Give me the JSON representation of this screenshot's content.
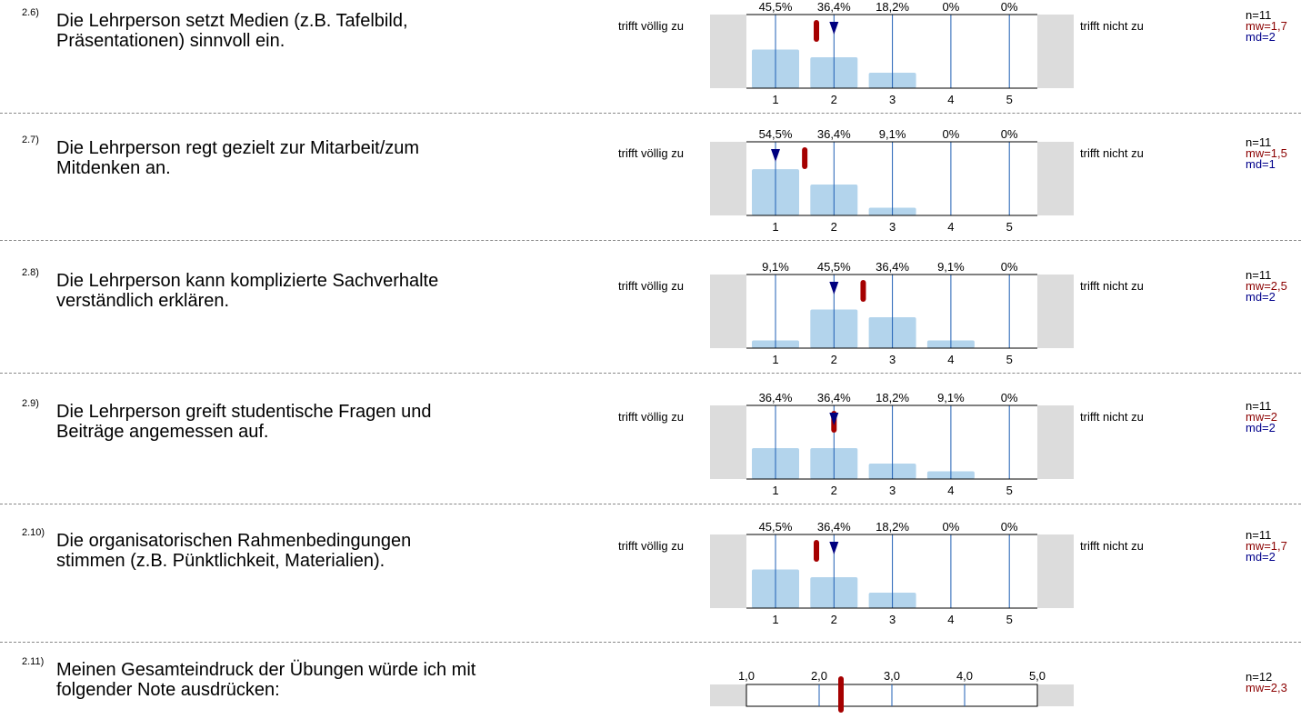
{
  "scale_left": "trifft völlig zu",
  "scale_right": "trifft nicht zu",
  "colors": {
    "bar": "#b3d4ec",
    "grid": "#1f5fb4",
    "mean": "#a50000",
    "median": "#00007f",
    "side": "#dcdcdc"
  },
  "items": [
    {
      "num": "2.6)",
      "line1": "Die Lehrperson setzt Medien (z.B. Tafelbild,",
      "line2": "Präsentationen) sinnvoll ein.",
      "pct": [
        "45,5%",
        "36,4%",
        "18,2%",
        "0%",
        "0%"
      ],
      "n": "n=11",
      "mw": "mw=1,7",
      "md": "md=2"
    },
    {
      "num": "2.7)",
      "line1": "Die Lehrperson regt gezielt zur Mitarbeit/zum",
      "line2": "Mitdenken an.",
      "pct": [
        "54,5%",
        "36,4%",
        "9,1%",
        "0%",
        "0%"
      ],
      "n": "n=11",
      "mw": "mw=1,5",
      "md": "md=1"
    },
    {
      "num": "2.8)",
      "line1": "Die Lehrperson kann komplizierte Sachverhalte",
      "line2": "verständlich erklären.",
      "pct": [
        "9,1%",
        "45,5%",
        "36,4%",
        "9,1%",
        "0%"
      ],
      "n": "n=11",
      "mw": "mw=2,5",
      "md": "md=2"
    },
    {
      "num": "2.9)",
      "line1": "Die Lehrperson greift studentische Fragen und",
      "line2": "Beiträge angemessen auf.",
      "pct": [
        "36,4%",
        "36,4%",
        "18,2%",
        "9,1%",
        "0%"
      ],
      "n": "n=11",
      "mw": "mw=2",
      "md": "md=2"
    },
    {
      "num": "2.10)",
      "line1": "Die organisatorischen Rahmenbedingungen",
      "line2": "stimmen (z.B. Pünktlichkeit, Materialien).",
      "pct": [
        "45,5%",
        "36,4%",
        "18,2%",
        "0%",
        "0%"
      ],
      "n": "n=11",
      "mw": "mw=1,7",
      "md": "md=2"
    }
  ],
  "final": {
    "num": "2.11)",
    "line1": "Meinen Gesamteindruck der Übungen würde ich mit",
    "line2": "folgender Note ausdrücken:",
    "ticks": [
      "1,0",
      "2,0",
      "3,0",
      "4,0",
      "5,0"
    ],
    "n": "n=12",
    "mw": "mw=2,3"
  },
  "chart_data": [
    {
      "type": "bar",
      "title": "2.6)",
      "categories": [
        "1",
        "2",
        "3",
        "4",
        "5"
      ],
      "values": [
        45.5,
        36.4,
        18.2,
        0,
        0
      ],
      "mean": 1.7,
      "median": 2,
      "n": 11
    },
    {
      "type": "bar",
      "title": "2.7)",
      "categories": [
        "1",
        "2",
        "3",
        "4",
        "5"
      ],
      "values": [
        54.5,
        36.4,
        9.1,
        0,
        0
      ],
      "mean": 1.5,
      "median": 1,
      "n": 11
    },
    {
      "type": "bar",
      "title": "2.8)",
      "categories": [
        "1",
        "2",
        "3",
        "4",
        "5"
      ],
      "values": [
        9.1,
        45.5,
        36.4,
        9.1,
        0
      ],
      "mean": 2.5,
      "median": 2,
      "n": 11
    },
    {
      "type": "bar",
      "title": "2.9)",
      "categories": [
        "1",
        "2",
        "3",
        "4",
        "5"
      ],
      "values": [
        36.4,
        36.4,
        18.2,
        9.1,
        0
      ],
      "mean": 2.0,
      "median": 2,
      "n": 11
    },
    {
      "type": "bar",
      "title": "2.10)",
      "categories": [
        "1",
        "2",
        "3",
        "4",
        "5"
      ],
      "values": [
        45.5,
        36.4,
        18.2,
        0,
        0
      ],
      "mean": 1.7,
      "median": 2,
      "n": 11
    },
    {
      "type": "scatter",
      "title": "2.11)",
      "xlim": [
        1,
        5
      ],
      "mean": 2.3,
      "n": 12
    }
  ]
}
